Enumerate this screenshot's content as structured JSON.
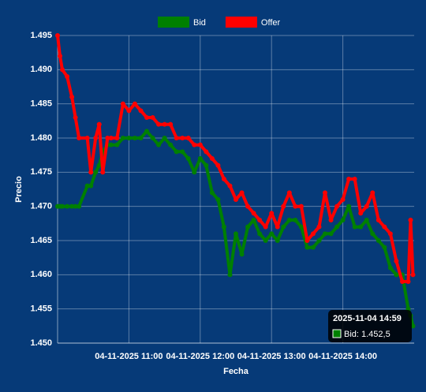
{
  "chart_data": {
    "type": "line",
    "x_label": "Fecha",
    "y_label": "Precio",
    "x": [
      "2025-11-04 10:00",
      "2025-11-04 10:02",
      "2025-11-04 10:04",
      "2025-11-04 10:08",
      "2025-11-04 10:12",
      "2025-11-04 10:15",
      "2025-11-04 10:18",
      "2025-11-04 10:25",
      "2025-11-04 10:28",
      "2025-11-04 10:32",
      "2025-11-04 10:35",
      "2025-11-04 10:38",
      "2025-11-04 10:42",
      "2025-11-04 10:45",
      "2025-11-04 10:50",
      "2025-11-04 10:55",
      "2025-11-04 11:00",
      "2025-11-04 11:05",
      "2025-11-04 11:10",
      "2025-11-04 11:15",
      "2025-11-04 11:20",
      "2025-11-04 11:25",
      "2025-11-04 11:30",
      "2025-11-04 11:35",
      "2025-11-04 11:40",
      "2025-11-04 11:45",
      "2025-11-04 11:50",
      "2025-11-04 11:55",
      "2025-11-04 12:00",
      "2025-11-04 12:05",
      "2025-11-04 12:10",
      "2025-11-04 12:15",
      "2025-11-04 12:20",
      "2025-11-04 12:25",
      "2025-11-04 12:30",
      "2025-11-04 12:35",
      "2025-11-04 12:40",
      "2025-11-04 12:45",
      "2025-11-04 12:50",
      "2025-11-04 12:55",
      "2025-11-04 13:00",
      "2025-11-04 13:05",
      "2025-11-04 13:10",
      "2025-11-04 13:15",
      "2025-11-04 13:20",
      "2025-11-04 13:25",
      "2025-11-04 13:30",
      "2025-11-04 13:35",
      "2025-11-04 13:40",
      "2025-11-04 13:45",
      "2025-11-04 13:50",
      "2025-11-04 13:55",
      "2025-11-04 14:00",
      "2025-11-04 14:05",
      "2025-11-04 14:10",
      "2025-11-04 14:15",
      "2025-11-04 14:20",
      "2025-11-04 14:25",
      "2025-11-04 14:30",
      "2025-11-04 14:35",
      "2025-11-04 14:40",
      "2025-11-04 14:45",
      "2025-11-04 14:50",
      "2025-11-04 14:55",
      "2025-11-04 14:57",
      "2025-11-04 14:59"
    ],
    "series": [
      {
        "name": "Bid",
        "color": "#008000",
        "values": [
          1.47,
          1.47,
          1.47,
          1.47,
          1.47,
          1.47,
          1.47,
          1.473,
          1.473,
          1.475,
          1.476,
          1.478,
          1.479,
          1.479,
          1.479,
          1.48,
          1.48,
          1.48,
          1.48,
          1.481,
          1.48,
          1.479,
          1.48,
          1.479,
          1.478,
          1.478,
          1.477,
          1.475,
          1.477,
          1.476,
          1.472,
          1.471,
          1.467,
          1.46,
          1.466,
          1.463,
          1.467,
          1.468,
          1.466,
          1.465,
          1.466,
          1.465,
          1.467,
          1.468,
          1.468,
          1.467,
          1.464,
          1.464,
          1.465,
          1.466,
          1.466,
          1.467,
          1.468,
          1.47,
          1.467,
          1.467,
          1.468,
          1.466,
          1.465,
          1.464,
          1.461,
          1.46,
          1.46,
          1.455,
          1.454,
          1.4525
        ]
      },
      {
        "name": "Offer",
        "color": "#ff0000",
        "values": [
          1.495,
          1.492,
          1.49,
          1.489,
          1.486,
          1.483,
          1.48,
          1.48,
          1.475,
          1.48,
          1.482,
          1.475,
          1.48,
          1.48,
          1.48,
          1.485,
          1.484,
          1.485,
          1.484,
          1.483,
          1.483,
          1.482,
          1.482,
          1.482,
          1.48,
          1.48,
          1.48,
          1.479,
          1.479,
          1.478,
          1.477,
          1.476,
          1.474,
          1.473,
          1.471,
          1.472,
          1.47,
          1.469,
          1.468,
          1.467,
          1.469,
          1.467,
          1.47,
          1.472,
          1.47,
          1.47,
          1.465,
          1.466,
          1.467,
          1.472,
          1.468,
          1.47,
          1.471,
          1.474,
          1.474,
          1.469,
          1.47,
          1.472,
          1.468,
          1.467,
          1.466,
          1.462,
          1.459,
          1.459,
          1.468,
          1.46
        ]
      }
    ],
    "xlim": [
      "2025-11-04 10:00",
      "2025-11-04 15:00"
    ],
    "xticks": [
      {
        "value": "2025-11-04 11:00",
        "label": "04-11-2025 11:00"
      },
      {
        "value": "2025-11-04 12:00",
        "label": "04-11-2025 12:00"
      },
      {
        "value": "2025-11-04 13:00",
        "label": "04-11-2025 13:00"
      },
      {
        "value": "2025-11-04 14:00",
        "label": "04-11-2025 14:00"
      }
    ],
    "ylim": [
      1.45,
      1.495
    ],
    "yticks": [
      {
        "value": 1.45,
        "label": "1.450"
      },
      {
        "value": 1.455,
        "label": "1.455"
      },
      {
        "value": 1.46,
        "label": "1.460"
      },
      {
        "value": 1.465,
        "label": "1.465"
      },
      {
        "value": 1.47,
        "label": "1.470"
      },
      {
        "value": 1.475,
        "label": "1.475"
      },
      {
        "value": 1.48,
        "label": "1.480"
      },
      {
        "value": 1.485,
        "label": "1.485"
      },
      {
        "value": 1.49,
        "label": "1.490"
      },
      {
        "value": 1.495,
        "label": "1.495"
      }
    ],
    "grid": true,
    "legend": "top",
    "tooltip": {
      "text": "Bid: 1.452,5"
    }
  }
}
